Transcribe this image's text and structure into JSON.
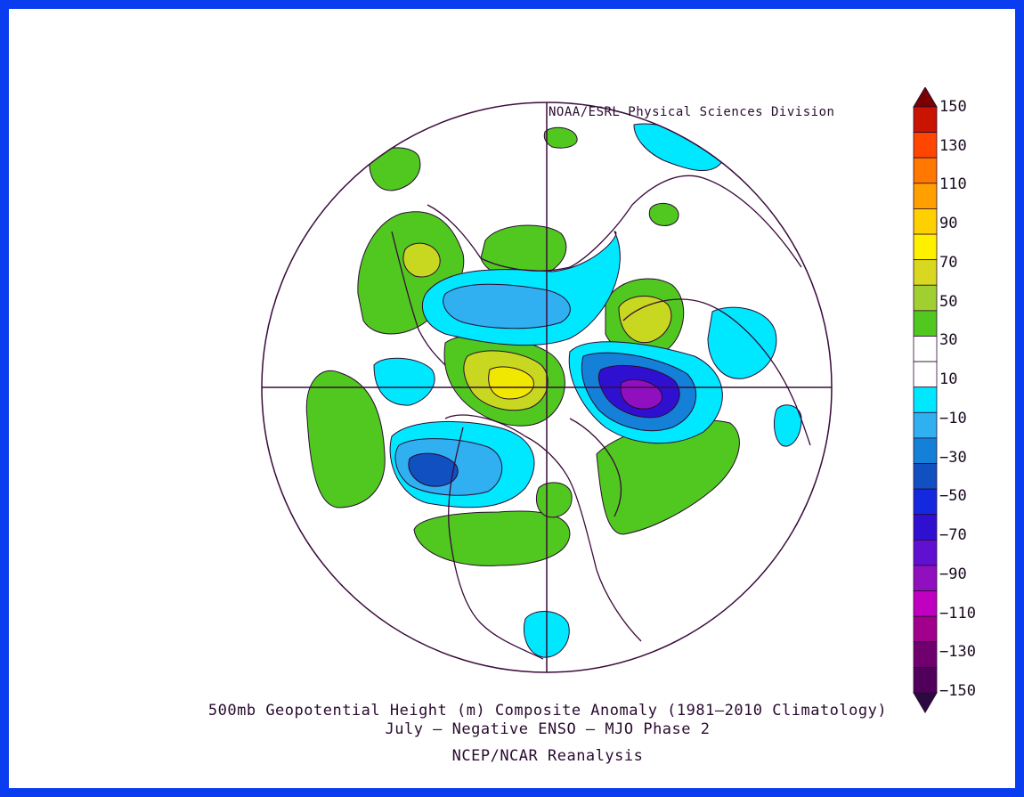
{
  "credit": "NOAA/ESRL Physical Sciences Division",
  "caption_line1": "500mb Geopotential Height (m) Composite Anomaly (1981–2010 Climatology)",
  "caption_line2": "July – Negative ENSO – MJO Phase 2",
  "caption_line3": "NCEP/NCAR Reanalysis",
  "colorbar": {
    "labels": [
      "150",
      "130",
      "110",
      "90",
      "70",
      "50",
      "30",
      "10",
      "−10",
      "−30",
      "−50",
      "−70",
      "−90",
      "−110",
      "−130",
      "−150"
    ],
    "colors": [
      "#7a0000",
      "#c81400",
      "#ff4600",
      "#ff7800",
      "#ffa000",
      "#ffd000",
      "#fff000",
      "#d8d820",
      "#a0d030",
      "#50c820",
      "#ffffff",
      "#ffffff",
      "#00e8ff",
      "#30b0f0",
      "#1480d8",
      "#1050c0",
      "#1428e0",
      "#3010d0",
      "#6010d0",
      "#9010c0",
      "#c000c0",
      "#a0008c",
      "#70006e",
      "#50005a",
      "#2a0a40"
    ]
  },
  "colors": {
    "frame": "#0a3cf0",
    "outline": "#3a0a3a"
  }
}
